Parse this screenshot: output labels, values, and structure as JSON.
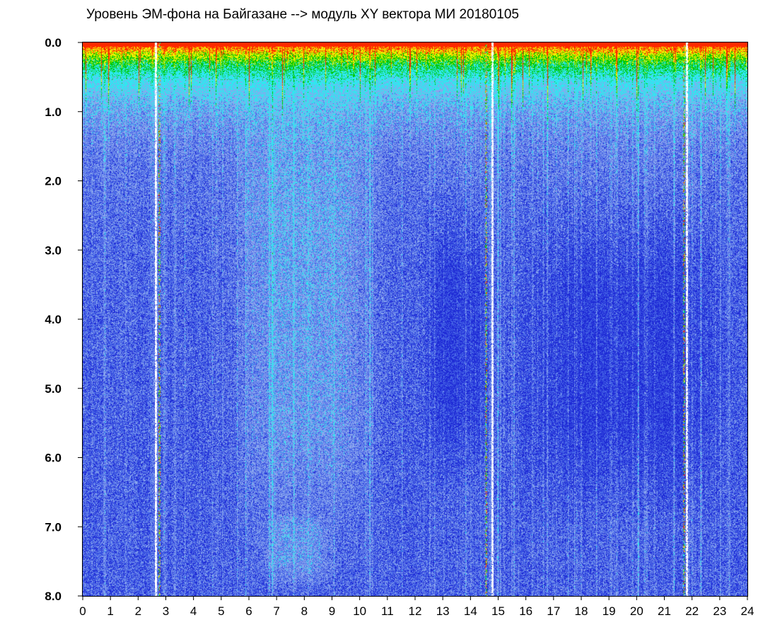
{
  "chart_data": {
    "type": "heatmap",
    "title": "Уровень ЭМ-фона на Байгазане  -->  модуль XY вектора МИ  20180105",
    "xlabel": "",
    "ylabel": "",
    "xlim": [
      0,
      24
    ],
    "ylim": [
      8.0,
      0.0
    ],
    "x_ticks": [
      "0",
      "1",
      "2",
      "3",
      "4",
      "5",
      "6",
      "7",
      "8",
      "9",
      "10",
      "11",
      "12",
      "13",
      "14",
      "15",
      "16",
      "17",
      "18",
      "19",
      "20",
      "21",
      "22",
      "23",
      "24"
    ],
    "y_ticks": [
      "0.0",
      "1.0",
      "2.0",
      "3.0",
      "4.0",
      "5.0",
      "6.0",
      "7.0",
      "8.0"
    ],
    "grid": false,
    "colormap": [
      "#1f2cd6",
      "#4a6ae8",
      "#8aa6ee",
      "#2ee8f0",
      "#00c800",
      "#f0f000",
      "#ff2a00"
    ],
    "bright_top_band": [
      0.0,
      1.0
    ],
    "white_gap_columns_hours": [
      2.62,
      14.78,
      21.8
    ],
    "noisy_columns_hours": [
      2.75,
      14.55,
      21.7
    ],
    "lighter_regions": [
      {
        "hours": [
          5.0,
          11.0
        ],
        "levels": [
          0.0,
          8.0
        ]
      },
      {
        "hours": [
          6.0,
          9.5
        ],
        "levels": [
          6.5,
          8.0
        ]
      }
    ],
    "darker_regions": [
      {
        "hours": [
          12.0,
          15.0
        ],
        "levels": [
          2.0,
          6.5
        ]
      },
      {
        "hours": [
          15.0,
          24.0
        ],
        "levels": [
          2.0,
          7.0
        ]
      }
    ]
  }
}
